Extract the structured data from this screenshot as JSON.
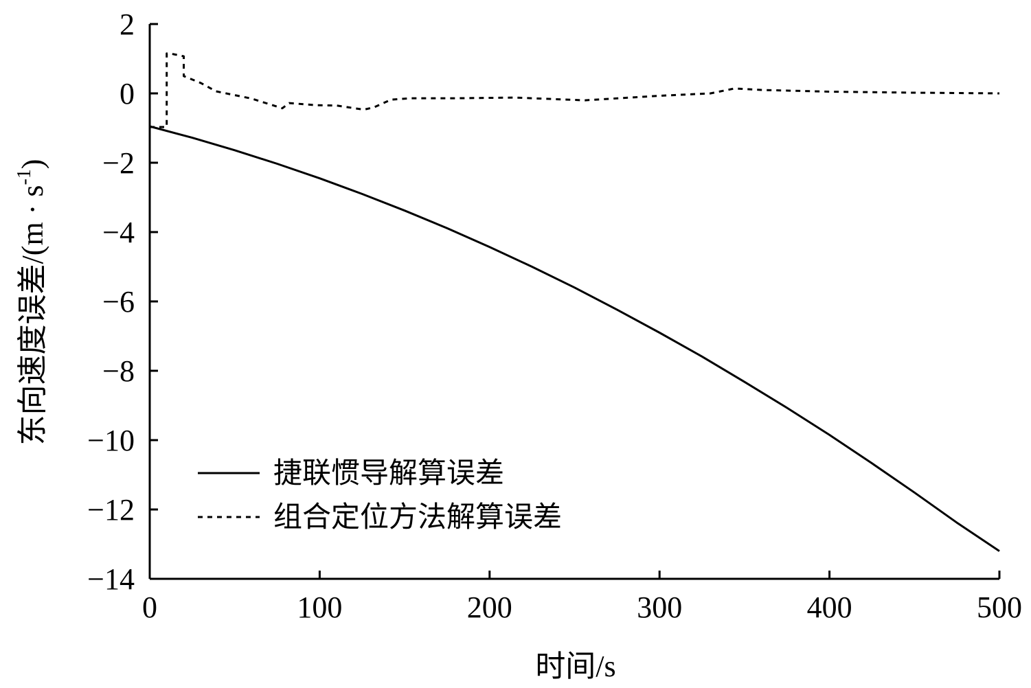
{
  "chart_data": {
    "type": "line",
    "title": "",
    "xlabel": "时间/s",
    "ylabel": "东向速度误差/(m · s",
    "ylabel_sup": "-1",
    "ylabel_close": ")",
    "xlim": [
      0,
      500
    ],
    "ylim": [
      -14,
      2
    ],
    "xticks": [
      0,
      100,
      200,
      300,
      400,
      500
    ],
    "yticks": [
      2,
      0,
      -2,
      -4,
      -6,
      -8,
      -10,
      -12,
      -14
    ],
    "ytick_labels": [
      "2",
      "0",
      "−2",
      "−4",
      "−6",
      "−8",
      "−10",
      "−12",
      "−14"
    ],
    "grid": false,
    "legend_position": "bottom-left",
    "series": [
      {
        "name": "捷联惯导解算误差",
        "style": "solid",
        "color": "#000000",
        "x": [
          0,
          25,
          50,
          75,
          100,
          125,
          150,
          175,
          200,
          225,
          250,
          275,
          300,
          325,
          350,
          375,
          400,
          425,
          450,
          475,
          500
        ],
        "y": [
          -0.95,
          -1.28,
          -1.64,
          -2.03,
          -2.45,
          -2.9,
          -3.38,
          -3.89,
          -4.43,
          -5.0,
          -5.6,
          -6.24,
          -6.9,
          -7.59,
          -8.32,
          -9.07,
          -9.85,
          -10.67,
          -11.51,
          -12.38,
          -13.2
        ]
      },
      {
        "name": "组合定位方法解算误差",
        "style": "dotted",
        "color": "#000000",
        "x": [
          0,
          10,
          10,
          12,
          20,
          20,
          30,
          39,
          60,
          78,
          82,
          98,
          110,
          126,
          132,
          142,
          154,
          180,
          215,
          256,
          300,
          330,
          344,
          360,
          400,
          450,
          500
        ],
        "y": [
          -0.97,
          -0.97,
          1.15,
          1.15,
          1.07,
          0.5,
          0.3,
          0.06,
          -0.15,
          -0.43,
          -0.28,
          -0.34,
          -0.35,
          -0.47,
          -0.4,
          -0.18,
          -0.14,
          -0.14,
          -0.12,
          -0.2,
          -0.07,
          0.0,
          0.14,
          0.1,
          0.05,
          0.02,
          0.0
        ]
      }
    ]
  }
}
